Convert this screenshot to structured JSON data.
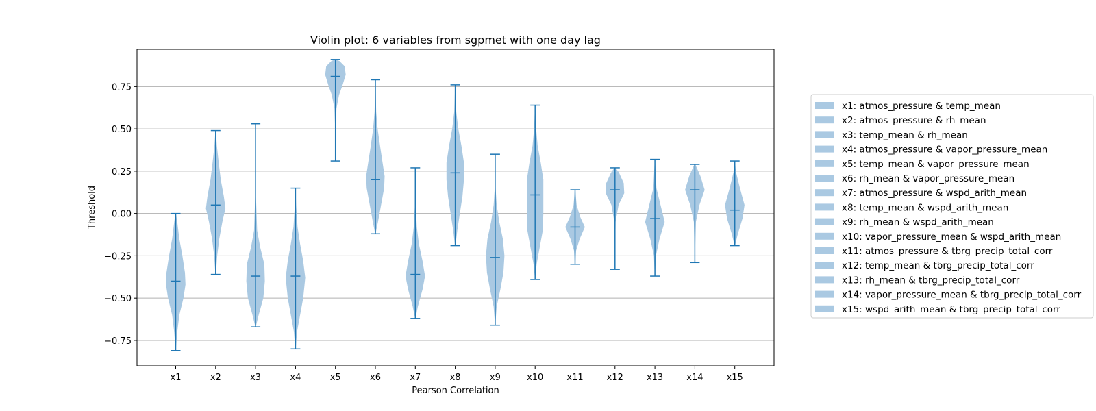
{
  "chart_data": {
    "type": "violin",
    "title": "Violin plot: 6 variables from sgpmet with one day lag",
    "xlabel": "Pearson Correlation",
    "ylabel": "Threshold",
    "ylim": [
      -0.9,
      0.97
    ],
    "yticks": [
      -0.75,
      -0.5,
      -0.25,
      0.0,
      0.25,
      0.5,
      0.75
    ],
    "ytick_labels": [
      "−0.75",
      "−0.50",
      "−0.25",
      "0.00",
      "0.25",
      "0.50",
      "0.75"
    ],
    "grid": "horizontal",
    "legend_position": "right-outside",
    "colors": {
      "body": "#aac9e2",
      "line": "#1f77b4",
      "grid": "#b0b0b0"
    },
    "categories": [
      "x1",
      "x2",
      "x3",
      "x4",
      "x5",
      "x6",
      "x7",
      "x8",
      "x9",
      "x10",
      "x11",
      "x12",
      "x13",
      "x14",
      "x15"
    ],
    "series": [
      {
        "label": "x1",
        "legend": "x1: atmos_pressure & temp_mean",
        "min": -0.81,
        "max": 0.0,
        "median": -0.4,
        "density": [
          [
            -0.81,
            0.01
          ],
          [
            -0.7,
            0.15
          ],
          [
            -0.6,
            0.35
          ],
          [
            -0.5,
            0.75
          ],
          [
            -0.42,
            0.95
          ],
          [
            -0.35,
            0.9
          ],
          [
            -0.25,
            0.65
          ],
          [
            -0.15,
            0.35
          ],
          [
            -0.05,
            0.15
          ],
          [
            0.0,
            0.02
          ]
        ]
      },
      {
        "label": "x2",
        "legend": "x2: atmos_pressure & rh_mean",
        "min": -0.36,
        "max": 0.49,
        "median": 0.05,
        "density": [
          [
            -0.36,
            0.02
          ],
          [
            -0.25,
            0.15
          ],
          [
            -0.15,
            0.35
          ],
          [
            -0.05,
            0.65
          ],
          [
            0.03,
            0.95
          ],
          [
            0.1,
            0.8
          ],
          [
            0.2,
            0.5
          ],
          [
            0.3,
            0.3
          ],
          [
            0.4,
            0.12
          ],
          [
            0.49,
            0.02
          ]
        ]
      },
      {
        "label": "x3",
        "legend": "x3: temp_mean & rh_mean",
        "min": -0.67,
        "max": 0.53,
        "median": -0.37,
        "density": [
          [
            -0.67,
            0.02
          ],
          [
            -0.6,
            0.3
          ],
          [
            -0.5,
            0.75
          ],
          [
            -0.4,
            0.9
          ],
          [
            -0.3,
            0.85
          ],
          [
            -0.2,
            0.45
          ],
          [
            -0.1,
            0.15
          ],
          [
            0.1,
            0.04
          ],
          [
            0.3,
            0.02
          ],
          [
            0.53,
            0.01
          ]
        ]
      },
      {
        "label": "x4",
        "legend": "x4: atmos_pressure & vapor_pressure_mean",
        "min": -0.8,
        "max": 0.15,
        "median": -0.37,
        "density": [
          [
            -0.8,
            0.02
          ],
          [
            -0.7,
            0.15
          ],
          [
            -0.6,
            0.45
          ],
          [
            -0.5,
            0.75
          ],
          [
            -0.38,
            0.95
          ],
          [
            -0.28,
            0.75
          ],
          [
            -0.18,
            0.45
          ],
          [
            -0.08,
            0.2
          ],
          [
            0.05,
            0.06
          ],
          [
            0.15,
            0.01
          ]
        ]
      },
      {
        "label": "x5",
        "legend": "x5: temp_mean & vapor_pressure_mean",
        "min": 0.31,
        "max": 0.91,
        "median": 0.81,
        "density": [
          [
            0.31,
            0.01
          ],
          [
            0.5,
            0.03
          ],
          [
            0.62,
            0.1
          ],
          [
            0.7,
            0.35
          ],
          [
            0.76,
            0.7
          ],
          [
            0.82,
            1.0
          ],
          [
            0.87,
            0.9
          ],
          [
            0.9,
            0.4
          ],
          [
            0.91,
            0.05
          ]
        ]
      },
      {
        "label": "x6",
        "legend": "x6: rh_mean & vapor_pressure_mean",
        "min": -0.12,
        "max": 0.79,
        "median": 0.2,
        "density": [
          [
            -0.12,
            0.02
          ],
          [
            -0.05,
            0.25
          ],
          [
            0.05,
            0.55
          ],
          [
            0.15,
            0.85
          ],
          [
            0.22,
            0.9
          ],
          [
            0.3,
            0.7
          ],
          [
            0.4,
            0.45
          ],
          [
            0.5,
            0.22
          ],
          [
            0.6,
            0.08
          ],
          [
            0.79,
            0.01
          ]
        ]
      },
      {
        "label": "x7",
        "legend": "x7: atmos_pressure & wspd_arith_mean",
        "min": -0.62,
        "max": 0.27,
        "median": -0.36,
        "density": [
          [
            -0.62,
            0.02
          ],
          [
            -0.55,
            0.25
          ],
          [
            -0.45,
            0.7
          ],
          [
            -0.37,
            0.95
          ],
          [
            -0.28,
            0.7
          ],
          [
            -0.18,
            0.35
          ],
          [
            -0.08,
            0.15
          ],
          [
            0.05,
            0.04
          ],
          [
            0.15,
            0.02
          ],
          [
            0.27,
            0.01
          ]
        ]
      },
      {
        "label": "x8",
        "legend": "x8: temp_mean & wspd_arith_mean",
        "min": -0.19,
        "max": 0.76,
        "median": 0.24,
        "density": [
          [
            -0.19,
            0.02
          ],
          [
            -0.1,
            0.2
          ],
          [
            0.0,
            0.45
          ],
          [
            0.1,
            0.7
          ],
          [
            0.2,
            0.85
          ],
          [
            0.3,
            0.85
          ],
          [
            0.4,
            0.6
          ],
          [
            0.5,
            0.3
          ],
          [
            0.6,
            0.1
          ],
          [
            0.76,
            0.01
          ]
        ]
      },
      {
        "label": "x9",
        "legend": "x9: rh_mean & wspd_arith_mean",
        "min": -0.66,
        "max": 0.35,
        "median": -0.26,
        "density": [
          [
            -0.66,
            0.01
          ],
          [
            -0.55,
            0.15
          ],
          [
            -0.45,
            0.5
          ],
          [
            -0.35,
            0.8
          ],
          [
            -0.25,
            0.9
          ],
          [
            -0.15,
            0.75
          ],
          [
            -0.05,
            0.4
          ],
          [
            0.05,
            0.15
          ],
          [
            0.15,
            0.04
          ],
          [
            0.35,
            0.01
          ]
        ]
      },
      {
        "label": "x10",
        "legend": "x10: vapor_pressure_mean & wspd_arith_mean",
        "min": -0.39,
        "max": 0.64,
        "median": 0.11,
        "density": [
          [
            -0.39,
            0.01
          ],
          [
            -0.3,
            0.15
          ],
          [
            -0.2,
            0.45
          ],
          [
            -0.1,
            0.75
          ],
          [
            0.0,
            0.8
          ],
          [
            0.1,
            0.8
          ],
          [
            0.2,
            0.8
          ],
          [
            0.3,
            0.55
          ],
          [
            0.4,
            0.25
          ],
          [
            0.5,
            0.1
          ],
          [
            0.64,
            0.01
          ]
        ]
      },
      {
        "label": "x11",
        "legend": "x11: atmos_pressure & tbrg_precip_total_corr",
        "min": -0.3,
        "max": 0.14,
        "median": -0.08,
        "density": [
          [
            -0.3,
            0.02
          ],
          [
            -0.22,
            0.1
          ],
          [
            -0.15,
            0.45
          ],
          [
            -0.08,
            0.95
          ],
          [
            -0.02,
            0.5
          ],
          [
            0.05,
            0.15
          ],
          [
            0.14,
            0.02
          ]
        ]
      },
      {
        "label": "x12",
        "legend": "x12: temp_mean & tbrg_precip_total_corr",
        "min": -0.33,
        "max": 0.27,
        "median": 0.14,
        "density": [
          [
            -0.33,
            0.01
          ],
          [
            -0.2,
            0.02
          ],
          [
            -0.05,
            0.06
          ],
          [
            0.05,
            0.35
          ],
          [
            0.12,
            0.9
          ],
          [
            0.18,
            0.85
          ],
          [
            0.24,
            0.4
          ],
          [
            0.27,
            0.05
          ]
        ]
      },
      {
        "label": "x13",
        "legend": "x13: rh_mean & tbrg_precip_total_corr",
        "min": -0.37,
        "max": 0.32,
        "median": -0.03,
        "density": [
          [
            -0.37,
            0.01
          ],
          [
            -0.25,
            0.1
          ],
          [
            -0.15,
            0.45
          ],
          [
            -0.05,
            0.95
          ],
          [
            0.05,
            0.55
          ],
          [
            0.15,
            0.15
          ],
          [
            0.32,
            0.01
          ]
        ]
      },
      {
        "label": "x14",
        "legend": "x14: vapor_pressure_mean & tbrg_precip_total_corr",
        "min": -0.29,
        "max": 0.29,
        "median": 0.14,
        "density": [
          [
            -0.29,
            0.01
          ],
          [
            -0.2,
            0.03
          ],
          [
            -0.05,
            0.1
          ],
          [
            0.05,
            0.45
          ],
          [
            0.14,
            0.95
          ],
          [
            0.22,
            0.55
          ],
          [
            0.29,
            0.05
          ]
        ]
      },
      {
        "label": "x15",
        "legend": "x15: wspd_arith_mean & tbrg_precip_total_corr",
        "min": -0.19,
        "max": 0.31,
        "median": 0.02,
        "density": [
          [
            -0.19,
            0.02
          ],
          [
            -0.12,
            0.3
          ],
          [
            -0.03,
            0.75
          ],
          [
            0.05,
            0.95
          ],
          [
            0.15,
            0.5
          ],
          [
            0.25,
            0.1
          ],
          [
            0.31,
            0.02
          ]
        ]
      }
    ]
  }
}
